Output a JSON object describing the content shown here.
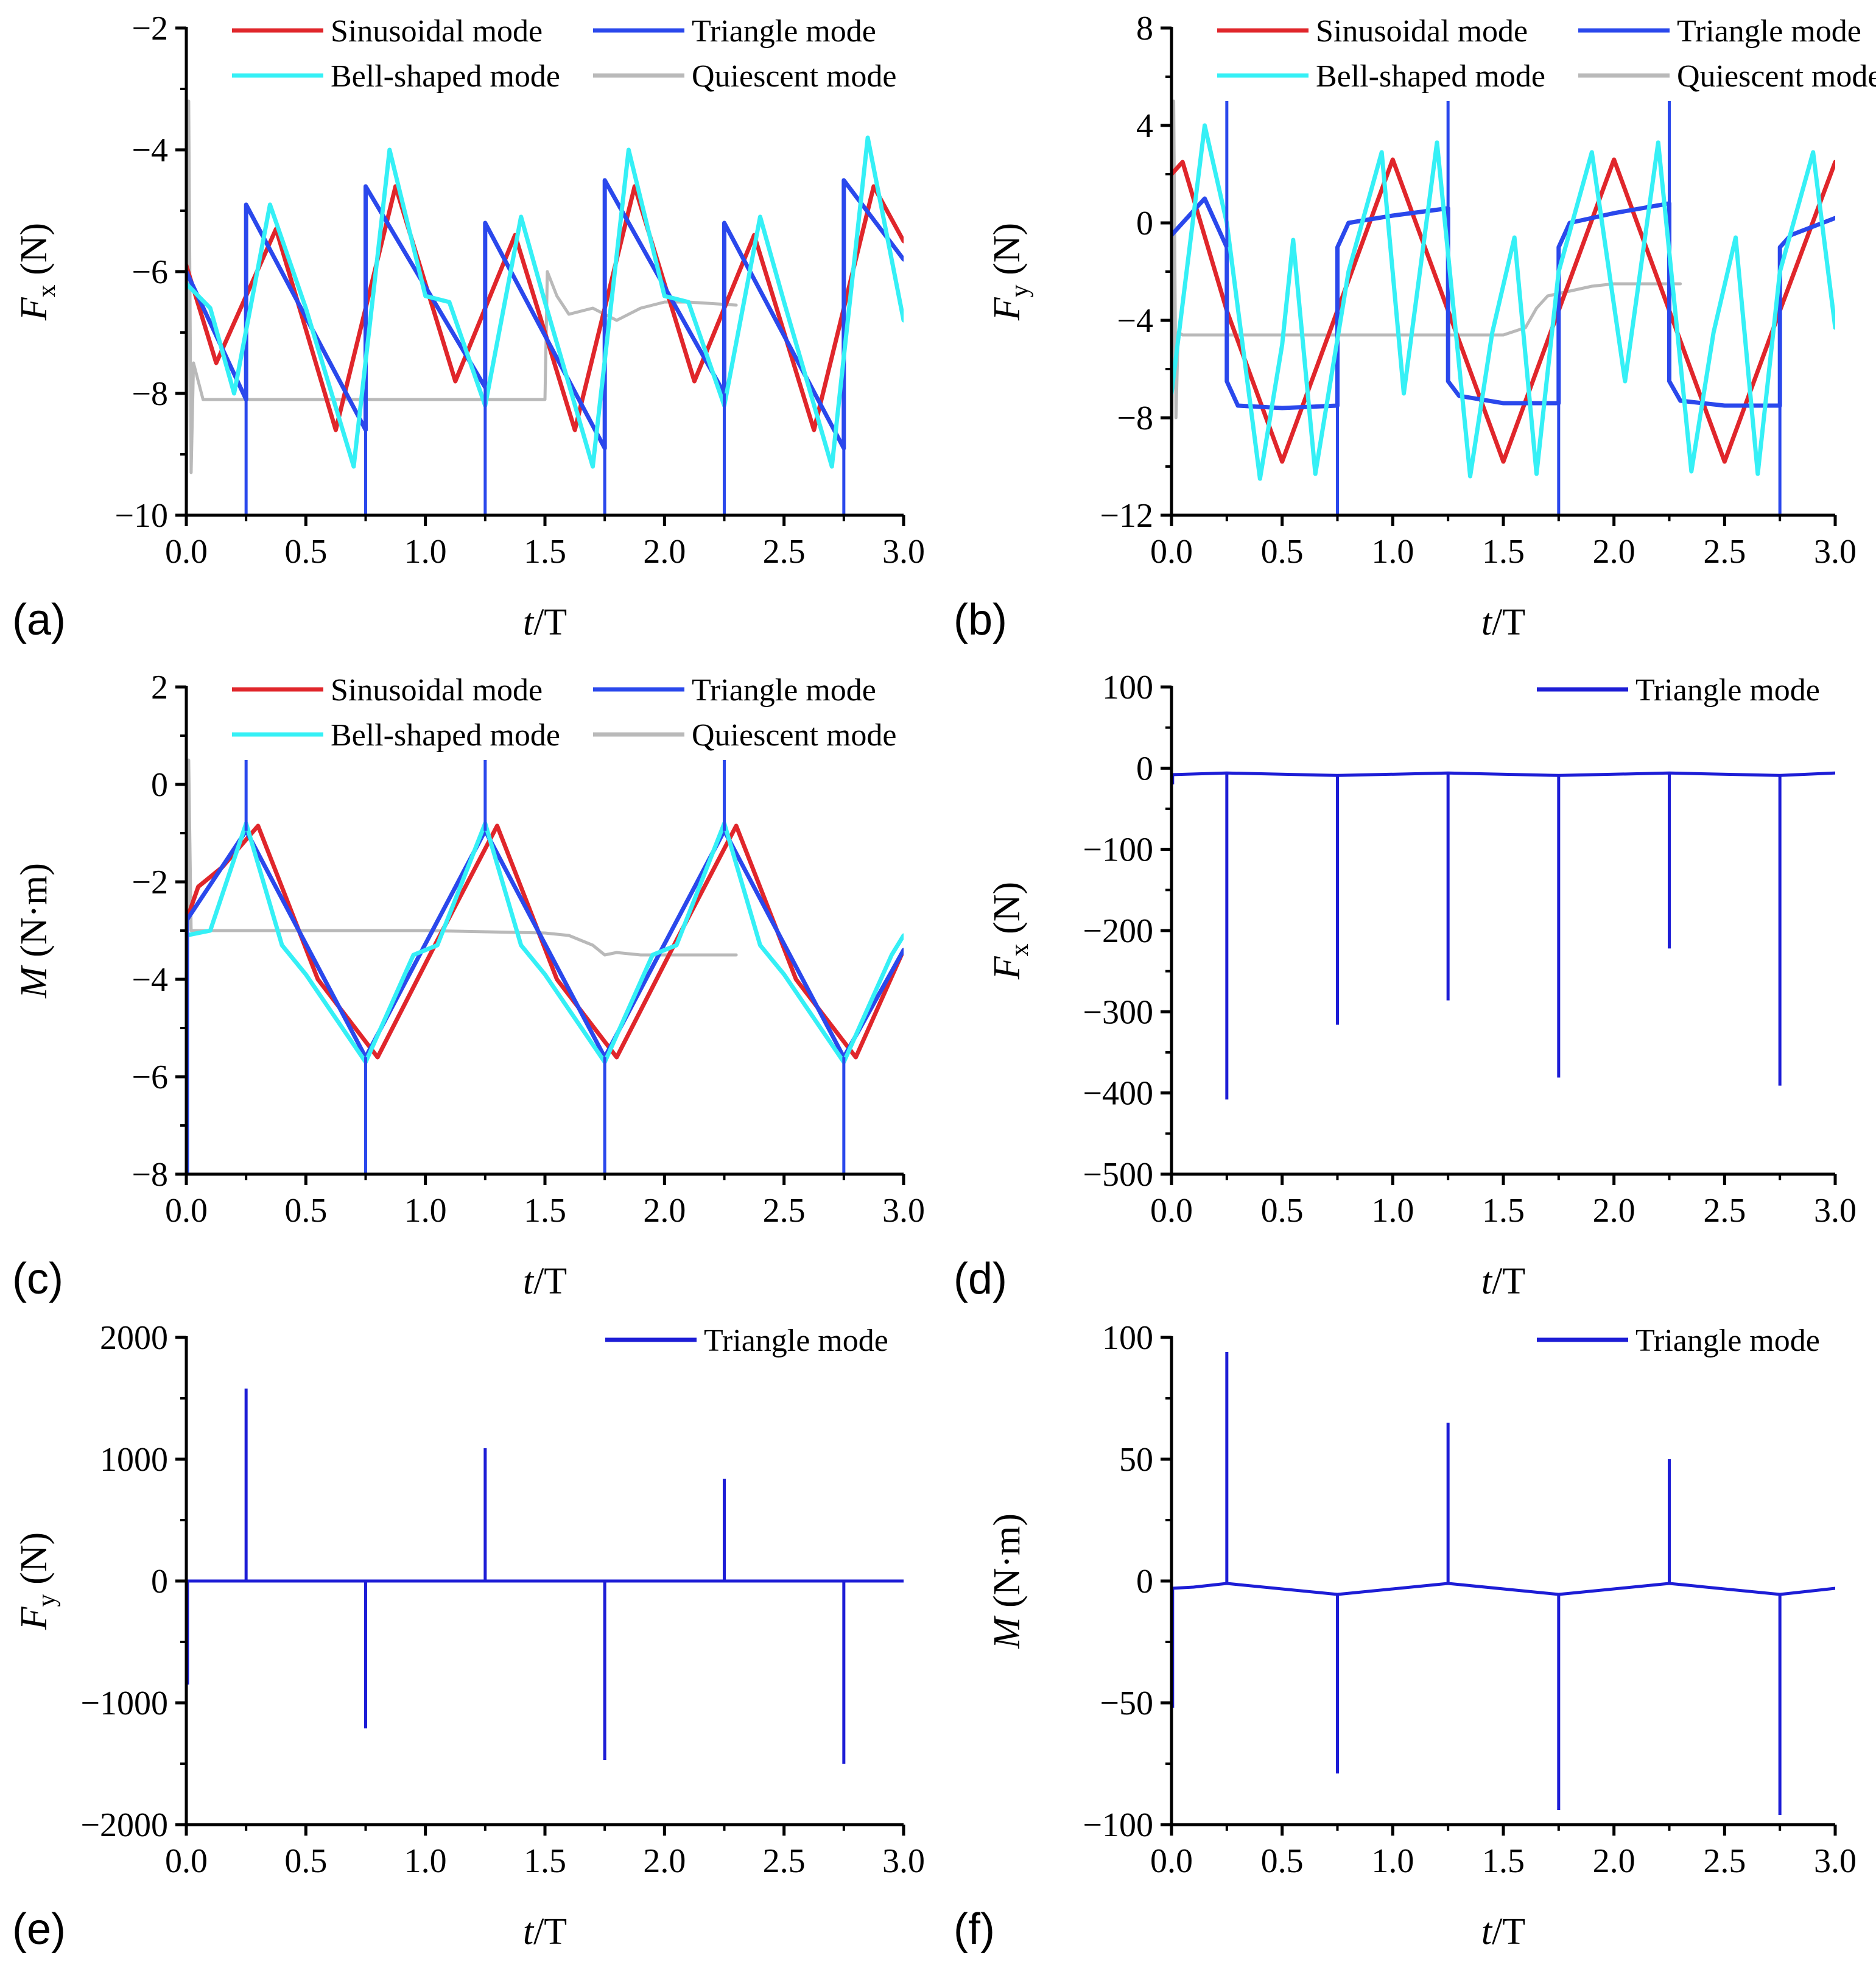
{
  "colors": {
    "sinusoidal": "#e0262b",
    "triangle": "#2a48ec",
    "triangle_dark": "#1d1dd6",
    "bell": "#35f0f6",
    "quiescent": "#b9b9b9",
    "axis": "#000000"
  },
  "chart_data": [
    {
      "panel_label": "(a)",
      "type": "line",
      "xlabel_italic": "t",
      "xlabel_rest": "/T",
      "ylabel_main": "F",
      "ylabel_sub": "x",
      "ylabel_unit": " (N)",
      "xlim": [
        0,
        3
      ],
      "ylim": [
        -10,
        -2
      ],
      "xticks": [
        "0.0",
        "0.5",
        "1.0",
        "1.5",
        "2.0",
        "2.5",
        "3.0"
      ],
      "yticks": [
        "-10",
        "-8",
        "-6",
        "-4",
        "-2"
      ],
      "legend": [
        "Sinusoidal mode",
        "Triangle mode",
        "Bell-shaped mode",
        "Quiescent mode"
      ],
      "legend_position": "top",
      "series": [
        {
          "name": "Sinusoidal mode",
          "x": [
            0,
            0.125,
            0.375,
            0.625,
            0.875,
            1.125,
            1.375,
            1.625,
            1.875,
            2.125,
            2.375,
            2.625,
            2.875,
            3.0
          ],
          "y": [
            -5.9,
            -7.5,
            -5.3,
            -8.6,
            -4.6,
            -7.8,
            -5.4,
            -8.6,
            -4.6,
            -7.8,
            -5.4,
            -8.6,
            -4.6,
            -5.5
          ]
        },
        {
          "name": "Triangle mode",
          "x": [
            0,
            0.25,
            0.25,
            0.75,
            0.75,
            1.25,
            1.25,
            1.75,
            1.75,
            2.25,
            2.25,
            2.75,
            2.75,
            3.0
          ],
          "y": [
            -6.0,
            -8.1,
            -4.9,
            -8.6,
            -4.6,
            -7.9,
            -5.2,
            -8.9,
            -4.5,
            -8.0,
            -5.2,
            -8.9,
            -4.5,
            -5.8
          ]
        },
        {
          "name": "Bell-shaped mode",
          "x": [
            0,
            0.1,
            0.2,
            0.35,
            0.5,
            0.7,
            0.85,
            1.0,
            1.1,
            1.25,
            1.4,
            1.5,
            1.7,
            1.85,
            2.0,
            2.1,
            2.25,
            2.4,
            2.5,
            2.7,
            2.85,
            3.0
          ],
          "y": [
            -6.2,
            -6.6,
            -8.0,
            -4.9,
            -6.6,
            -9.2,
            -4.0,
            -6.4,
            -6.5,
            -8.2,
            -5.1,
            -6.5,
            -9.2,
            -4.0,
            -6.4,
            -6.5,
            -8.2,
            -5.1,
            -6.5,
            -9.2,
            -3.8,
            -6.8
          ]
        },
        {
          "name": "Quiescent mode",
          "x": [
            0,
            0.01,
            0.02,
            0.03,
            0.05,
            0.07,
            0.1,
            0.5,
            1.0,
            1.5,
            1.51,
            1.55,
            1.6,
            1.7,
            1.8,
            1.9,
            2.0,
            2.1,
            2.3
          ],
          "y": [
            -10,
            -3.2,
            -9.3,
            -7.5,
            -7.8,
            -8.1,
            -8.1,
            -8.1,
            -8.1,
            -8.1,
            -6.0,
            -6.4,
            -6.7,
            -6.6,
            -6.8,
            -6.6,
            -6.5,
            -6.5,
            -6.55
          ]
        }
      ],
      "spikes": [
        {
          "series": "Triangle mode",
          "x": [
            0.25,
            0.75,
            1.25,
            1.75,
            2.25,
            2.75
          ],
          "to": -10
        }
      ]
    },
    {
      "panel_label": "(b)",
      "type": "line",
      "xlabel_italic": "t",
      "xlabel_rest": "/T",
      "ylabel_main": "F",
      "ylabel_sub": "y",
      "ylabel_unit": " (N)",
      "xlim": [
        0,
        3
      ],
      "ylim": [
        -12,
        8
      ],
      "xticks": [
        "0.0",
        "0.5",
        "1.0",
        "1.5",
        "2.0",
        "2.5",
        "3.0"
      ],
      "yticks": [
        "-12",
        "-8",
        "-4",
        "0",
        "4",
        "8"
      ],
      "legend": [
        "Sinusoidal mode",
        "Triangle mode",
        "Bell-shaped mode",
        "Quiescent mode"
      ],
      "legend_position": "top",
      "series": [
        {
          "name": "Sinusoidal mode",
          "x": [
            0,
            0.05,
            0.25,
            0.5,
            0.75,
            1.0,
            1.25,
            1.5,
            1.75,
            2.0,
            2.25,
            2.5,
            2.75,
            3.0
          ],
          "y": [
            2.0,
            2.5,
            -3.6,
            -9.8,
            -3.6,
            2.6,
            -3.6,
            -9.8,
            -3.6,
            2.6,
            -3.6,
            -9.8,
            -3.6,
            2.5
          ]
        },
        {
          "name": "Triangle mode",
          "x": [
            0,
            0.15,
            0.25,
            0.25,
            0.3,
            0.5,
            0.75,
            0.75,
            0.8,
            1.0,
            1.25,
            1.25,
            1.3,
            1.5,
            1.75,
            1.75,
            1.8,
            2.0,
            2.25,
            2.25,
            2.3,
            2.5,
            2.75,
            2.75,
            2.8,
            3.0
          ],
          "y": [
            -0.5,
            1.0,
            -1.0,
            -6.5,
            -7.5,
            -7.6,
            -7.5,
            -1.0,
            0.0,
            0.3,
            0.6,
            -6.5,
            -7.1,
            -7.4,
            -7.4,
            -1.0,
            0.0,
            0.4,
            0.8,
            -6.5,
            -7.3,
            -7.5,
            -7.5,
            -1.0,
            -0.5,
            0.2
          ]
        },
        {
          "name": "Bell-shaped mode",
          "x": [
            0,
            0.15,
            0.25,
            0.4,
            0.5,
            0.55,
            0.65,
            0.8,
            0.95,
            1.05,
            1.2,
            1.35,
            1.45,
            1.55,
            1.65,
            1.75,
            1.9,
            2.05,
            2.2,
            2.35,
            2.45,
            2.55,
            2.65,
            2.75,
            2.9,
            3.0
          ],
          "y": [
            -7.0,
            4.0,
            0.0,
            -10.5,
            -5.0,
            -0.7,
            -10.3,
            -2.0,
            2.9,
            -7.0,
            3.3,
            -10.4,
            -4.5,
            -0.6,
            -10.3,
            -2.0,
            2.9,
            -6.5,
            3.3,
            -10.2,
            -4.5,
            -0.6,
            -10.3,
            -2.0,
            2.9,
            -4.3
          ]
        },
        {
          "name": "Quiescent mode",
          "x": [
            0,
            0.01,
            0.02,
            0.03,
            0.05,
            0.1,
            0.5,
            1.0,
            1.5,
            1.6,
            1.65,
            1.7,
            1.8,
            1.9,
            2.0,
            2.1,
            2.3
          ],
          "y": [
            -12,
            5.0,
            -8.0,
            -4.5,
            -4.6,
            -4.6,
            -4.6,
            -4.6,
            -4.6,
            -4.3,
            -3.5,
            -3.0,
            -2.8,
            -2.6,
            -2.5,
            -2.5,
            -2.5
          ]
        }
      ],
      "spikes": [
        {
          "series": "Triangle mode",
          "x": [
            0.25,
            1.25,
            2.25
          ],
          "to": 5
        },
        {
          "series": "Triangle mode",
          "x": [
            0.75,
            1.75,
            2.75
          ],
          "to": -12
        }
      ]
    },
    {
      "panel_label": "(c)",
      "type": "line",
      "xlabel_italic": "t",
      "xlabel_rest": "/T",
      "ylabel_main": "M",
      "ylabel_sub": "",
      "ylabel_unit": " (N·m)",
      "xlim": [
        0,
        3
      ],
      "ylim": [
        -8,
        2
      ],
      "xticks": [
        "0.0",
        "0.5",
        "1.0",
        "1.5",
        "2.0",
        "2.5",
        "3.0"
      ],
      "yticks": [
        "-8",
        "-6",
        "-4",
        "-2",
        "0",
        "2"
      ],
      "legend": [
        "Sinusoidal mode",
        "Triangle mode",
        "Bell-shaped mode",
        "Quiescent mode"
      ],
      "legend_position": "top",
      "series": [
        {
          "name": "Sinusoidal mode",
          "x": [
            0,
            0.05,
            0.15,
            0.3,
            0.55,
            0.8,
            1.05,
            1.3,
            1.55,
            1.8,
            2.05,
            2.3,
            2.55,
            2.8,
            3.0
          ],
          "y": [
            -2.8,
            -2.1,
            -1.7,
            -0.85,
            -4.0,
            -5.6,
            -3.2,
            -0.85,
            -4.0,
            -5.6,
            -3.2,
            -0.85,
            -4.0,
            -5.6,
            -3.4
          ]
        },
        {
          "name": "Triangle mode",
          "x": [
            0,
            0.25,
            0.75,
            1.25,
            1.75,
            2.25,
            2.75,
            3.0
          ],
          "y": [
            -2.8,
            -0.95,
            -5.6,
            -0.95,
            -5.6,
            -0.95,
            -5.6,
            -3.4
          ]
        },
        {
          "name": "Bell-shaped mode",
          "x": [
            0,
            0.1,
            0.25,
            0.4,
            0.5,
            0.75,
            0.95,
            1.05,
            1.25,
            1.4,
            1.5,
            1.75,
            1.95,
            2.05,
            2.25,
            2.4,
            2.5,
            2.75,
            2.95,
            3.0
          ],
          "y": [
            -3.1,
            -3.0,
            -0.8,
            -3.3,
            -3.9,
            -5.7,
            -3.5,
            -3.3,
            -0.8,
            -3.3,
            -3.9,
            -5.7,
            -3.5,
            -3.3,
            -0.8,
            -3.3,
            -3.9,
            -5.7,
            -3.5,
            -3.1
          ]
        },
        {
          "name": "Quiescent mode",
          "x": [
            0,
            0.01,
            0.02,
            0.05,
            0.5,
            1.0,
            1.5,
            1.6,
            1.7,
            1.75,
            1.8,
            1.9,
            2.0,
            2.3
          ],
          "y": [
            -8,
            0.5,
            -3.0,
            -3.0,
            -3.0,
            -3.0,
            -3.05,
            -3.1,
            -3.3,
            -3.5,
            -3.45,
            -3.5,
            -3.5,
            -3.5
          ]
        }
      ],
      "spikes": [
        {
          "series": "Triangle mode",
          "x": [
            0.25,
            1.25,
            2.25
          ],
          "to": 0.5
        },
        {
          "series": "Triangle mode",
          "x": [
            0.75,
            1.75,
            2.75
          ],
          "to": -8
        },
        {
          "series": "Triangle mode",
          "x": [
            0.005
          ],
          "to": -8
        }
      ]
    },
    {
      "panel_label": "(d)",
      "type": "line",
      "xlabel_italic": "t",
      "xlabel_rest": "/T",
      "ylabel_main": "F",
      "ylabel_sub": "x",
      "ylabel_unit": " (N)",
      "xlim": [
        0,
        3
      ],
      "ylim": [
        -500,
        100
      ],
      "xticks": [
        "0.0",
        "0.5",
        "1.0",
        "1.5",
        "2.0",
        "2.5",
        "3.0"
      ],
      "yticks": [
        "-500",
        "-400",
        "-300",
        "-200",
        "-100",
        "0",
        "100"
      ],
      "legend": [
        "Triangle mode"
      ],
      "legend_position": "top-right",
      "series": [
        {
          "name": "Triangle mode",
          "x": [
            0,
            0.25,
            0.75,
            1.25,
            1.75,
            2.25,
            2.75,
            3.0
          ],
          "y": [
            -8,
            -6,
            -9,
            -6,
            -9,
            -6,
            -9,
            -6
          ]
        }
      ],
      "spikes": [
        {
          "series": "Triangle mode",
          "x": [
            0.005
          ],
          "to": -20
        },
        {
          "series": "Triangle mode",
          "x": [
            0.25
          ],
          "to": -408
        },
        {
          "series": "Triangle mode",
          "x": [
            0.75
          ],
          "to": -316
        },
        {
          "series": "Triangle mode",
          "x": [
            1.25
          ],
          "to": -286
        },
        {
          "series": "Triangle mode",
          "x": [
            1.75
          ],
          "to": -381
        },
        {
          "series": "Triangle mode",
          "x": [
            2.25
          ],
          "to": -222
        },
        {
          "series": "Triangle mode",
          "x": [
            2.75
          ],
          "to": -391
        }
      ]
    },
    {
      "panel_label": "(e)",
      "type": "line",
      "xlabel_italic": "t",
      "xlabel_rest": "/T",
      "ylabel_main": "F",
      "ylabel_sub": "y",
      "ylabel_unit": " (N)",
      "xlim": [
        0,
        3
      ],
      "ylim": [
        -2000,
        2000
      ],
      "xticks": [
        "0.0",
        "0.5",
        "1.0",
        "1.5",
        "2.0",
        "2.5",
        "3.0"
      ],
      "yticks": [
        "-2000",
        "-1000",
        "0",
        "1000",
        "2000"
      ],
      "legend": [
        "Triangle mode"
      ],
      "legend_position": "top-right",
      "series": [
        {
          "name": "Triangle mode",
          "x": [
            0,
            0.25,
            0.75,
            1.25,
            1.75,
            2.25,
            2.75,
            3.0
          ],
          "y": [
            0,
            0,
            0,
            0,
            0,
            0,
            0,
            0
          ]
        }
      ],
      "spikes": [
        {
          "series": "Triangle mode",
          "x": [
            0.005
          ],
          "to": -850
        },
        {
          "series": "Triangle mode",
          "x": [
            0.25
          ],
          "to": 1580
        },
        {
          "series": "Triangle mode",
          "x": [
            0.75
          ],
          "to": -1210
        },
        {
          "series": "Triangle mode",
          "x": [
            1.25
          ],
          "to": 1090
        },
        {
          "series": "Triangle mode",
          "x": [
            1.75
          ],
          "to": -1470
        },
        {
          "series": "Triangle mode",
          "x": [
            2.25
          ],
          "to": 840
        },
        {
          "series": "Triangle mode",
          "x": [
            2.75
          ],
          "to": -1500
        }
      ]
    },
    {
      "panel_label": "(f)",
      "type": "line",
      "xlabel_italic": "t",
      "xlabel_rest": "/T",
      "ylabel_main": "M",
      "ylabel_sub": "",
      "ylabel_unit": " (N·m)",
      "xlim": [
        0,
        3
      ],
      "ylim": [
        -100,
        100
      ],
      "xticks": [
        "0.0",
        "0.5",
        "1.0",
        "1.5",
        "2.0",
        "2.5",
        "3.0"
      ],
      "yticks": [
        "-100",
        "-50",
        "0",
        "50",
        "100"
      ],
      "legend": [
        "Triangle mode"
      ],
      "legend_position": "top-right",
      "series": [
        {
          "name": "Triangle mode",
          "x": [
            0,
            0.1,
            0.25,
            0.75,
            1.25,
            1.75,
            2.25,
            2.75,
            3.0
          ],
          "y": [
            -3,
            -2.5,
            -1,
            -5.5,
            -1,
            -5.5,
            -1,
            -5.5,
            -3
          ]
        }
      ],
      "spikes": [
        {
          "series": "Triangle mode",
          "x": [
            0.005
          ],
          "to": -52
        },
        {
          "series": "Triangle mode",
          "x": [
            0.25
          ],
          "to": 94
        },
        {
          "series": "Triangle mode",
          "x": [
            0.75
          ],
          "to": -79
        },
        {
          "series": "Triangle mode",
          "x": [
            1.25
          ],
          "to": 65
        },
        {
          "series": "Triangle mode",
          "x": [
            1.75
          ],
          "to": -94
        },
        {
          "series": "Triangle mode",
          "x": [
            2.25
          ],
          "to": 50
        },
        {
          "series": "Triangle mode",
          "x": [
            2.75
          ],
          "to": -96
        }
      ]
    }
  ]
}
